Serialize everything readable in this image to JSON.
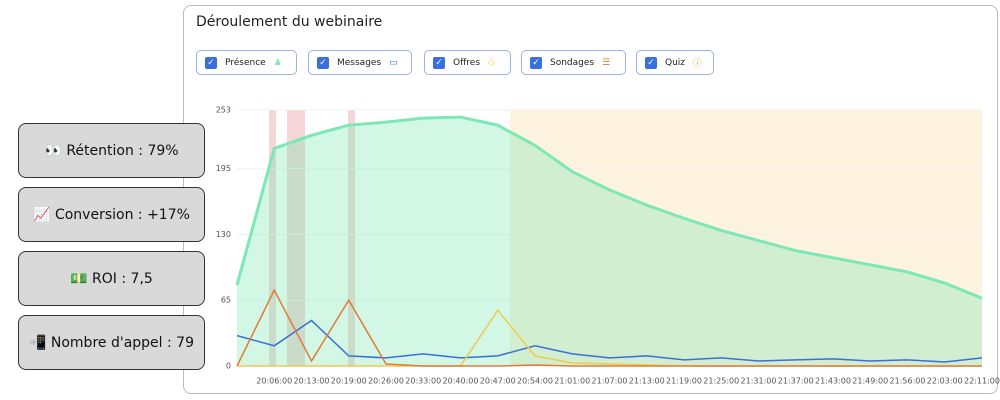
{
  "panel": {
    "title": "Déroulement du webinaire",
    "extra_toggle": "Quiz"
  },
  "stats": [
    "👀 Rétention : 79%",
    "📈 Conversion : +17%",
    "💵 ROI : 7,5",
    "📲 Nombre d'appel : 79"
  ],
  "chart_data": {
    "type": "line",
    "categories": [
      null,
      "20:06:00",
      "20:13:00",
      "20:19:00",
      "20:26:00",
      "20:33:00",
      "20:40:00",
      "20:47:00",
      "20:54:00",
      "21:01:00",
      "21:07:00",
      "21:13:00",
      "21:19:00",
      "21:25:00",
      "21:31:00",
      "21:37:00",
      "21:43:00",
      "21:49:00",
      "21:56:00",
      "22:03:00",
      "22:11:00"
    ],
    "series": [
      {
        "name": "Présence",
        "color": "#7de8b5",
        "area": true,
        "values": [
          80,
          215,
          228,
          238,
          241,
          245,
          246,
          238,
          218,
          192,
          174,
          159,
          146,
          134,
          124,
          114,
          107,
          100,
          93,
          82,
          67
        ]
      },
      {
        "name": "Messages",
        "color": "#3a6fd8",
        "values": [
          30,
          20,
          45,
          10,
          8,
          12,
          8,
          10,
          20,
          12,
          8,
          10,
          6,
          8,
          5,
          6,
          7,
          5,
          6,
          4,
          8
        ]
      },
      {
        "name": "Offres",
        "color": "#f2c94c",
        "values": [
          0,
          0,
          0,
          0,
          0,
          0,
          0,
          55,
          10,
          3,
          2,
          1,
          0,
          0,
          0,
          0,
          0,
          0,
          0,
          0,
          0
        ]
      },
      {
        "name": "Sondages",
        "color": "#e07b39",
        "values": [
          0,
          75,
          5,
          65,
          2,
          0,
          0,
          0,
          1,
          0,
          0,
          0,
          0,
          0,
          0,
          0,
          0,
          0,
          0,
          0,
          0
        ]
      }
    ],
    "ylim": [
      0,
      253
    ],
    "yticks": [
      0,
      65,
      130,
      195,
      253
    ]
  }
}
